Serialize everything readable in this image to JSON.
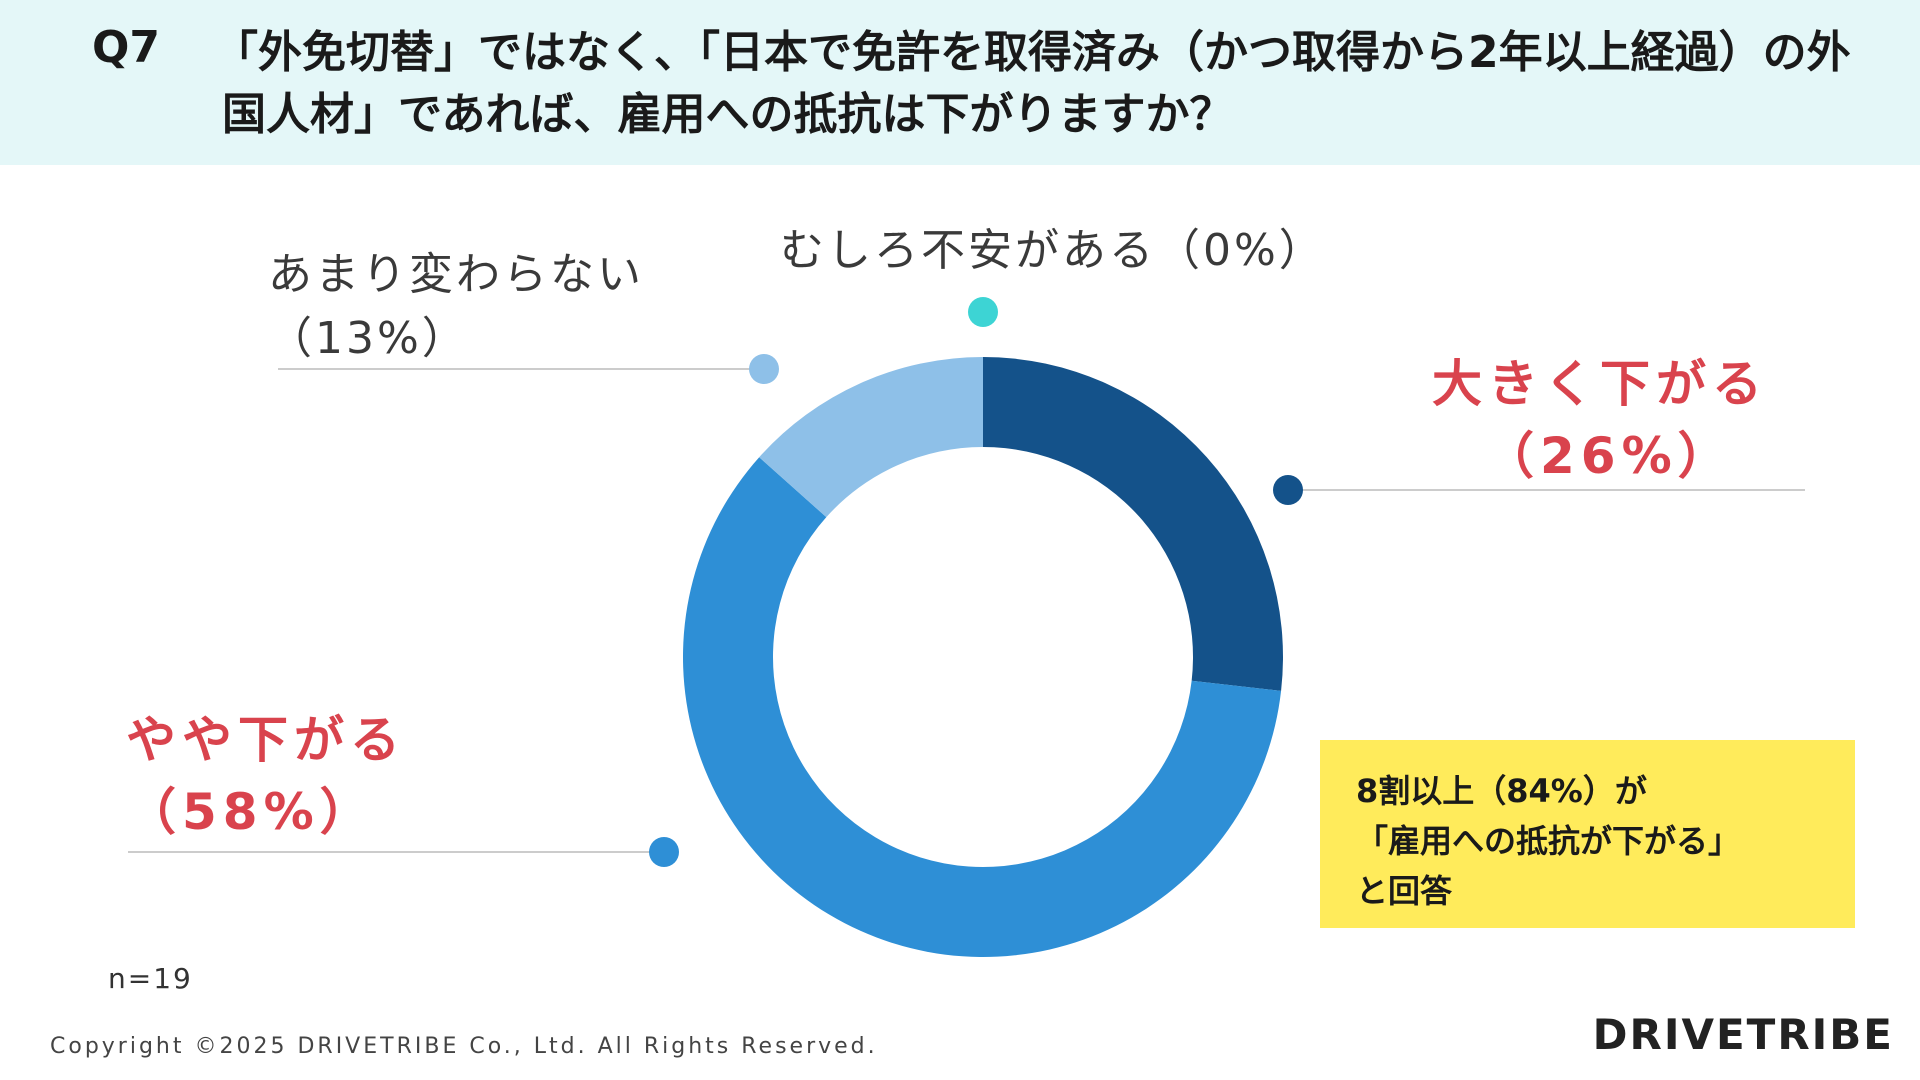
{
  "header": {
    "question_number": "Q7",
    "question_text": "「外免切替」ではなく、「日本で免許を取得済み（かつ取得から2年以上経過）の外国人材」であれば、雇用への抵抗は下がりますか？"
  },
  "chart_data": {
    "type": "donut",
    "title": "",
    "series": [
      {
        "label": "大きく下がる",
        "percent_label": "（26%）",
        "value": 26,
        "color": "#14528a"
      },
      {
        "label": "やや下がる",
        "percent_label": "（58%）",
        "value": 58,
        "color": "#2e8fd6"
      },
      {
        "label": "あまり変わらない",
        "percent_label": "（13%）",
        "value": 13,
        "color": "#8ec0e8"
      },
      {
        "label": "むしろ不安がある",
        "percent_label": "（0%）",
        "value": 0,
        "color": "#3dd4d4"
      }
    ],
    "highlight_color": "#d9434d"
  },
  "labels": {
    "big_down": "大きく下がる",
    "big_down_pct": "（26%）",
    "slight_down": "やや下がる",
    "slight_down_pct": "（58%）",
    "no_change": "あまり変わらない",
    "no_change_pct": "（13%）",
    "anxious": "むしろ不安がある（0%）"
  },
  "callout": {
    "line1": "8割以上（84%）が",
    "line2": "「雇用への抵抗が下がる」",
    "line3": "と回答"
  },
  "sample_size": "n=19",
  "footer": {
    "copyright": "Copyright ©2025 DRIVETRIBE Co., Ltd. All Rights Reserved.",
    "logo": "DRIVETRIBE"
  }
}
